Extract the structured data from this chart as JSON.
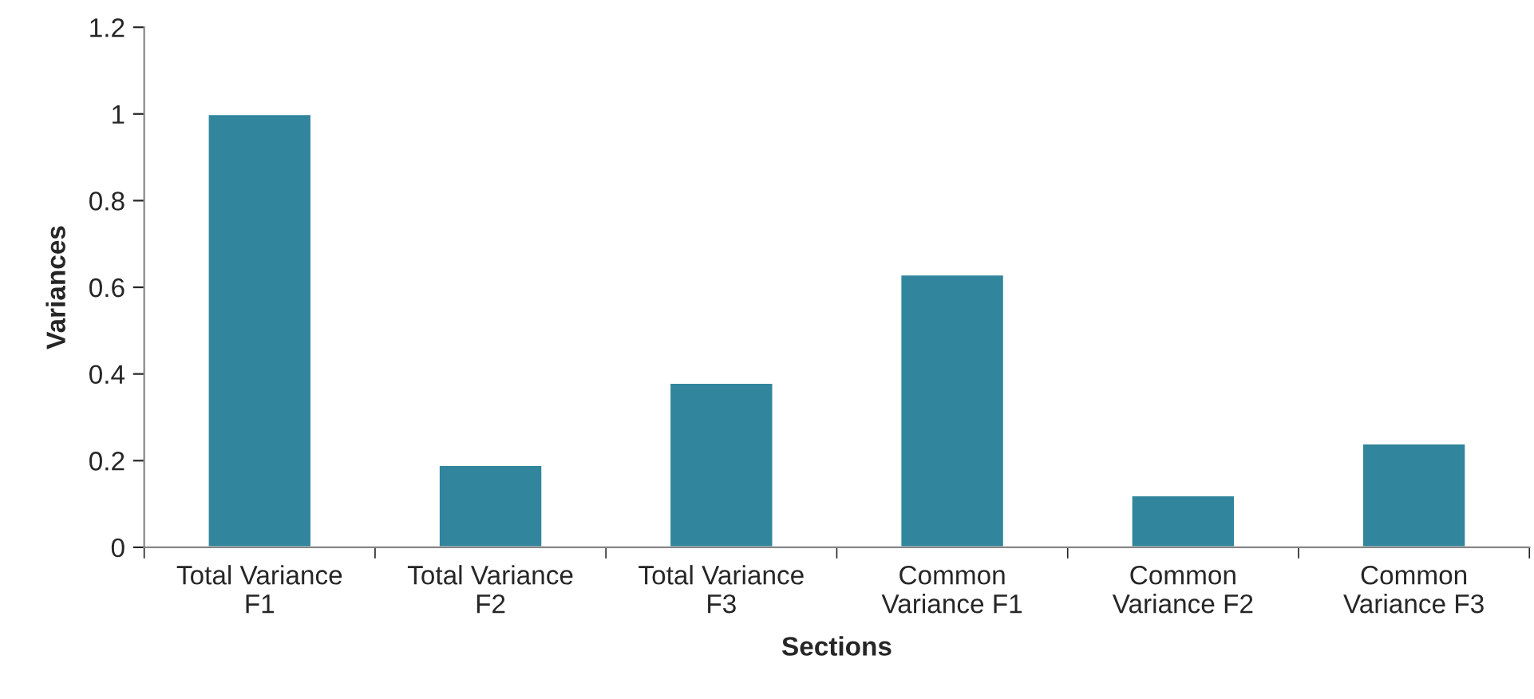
{
  "chart_data": {
    "type": "bar",
    "xlabel": "Sections",
    "ylabel": "Variances",
    "categories": [
      "Total Variance\nF1",
      "Total Variance\nF2",
      "Total Variance\nF3",
      "Common\nVariance F1",
      "Common\nVariance F2",
      "Common\nVariance F3"
    ],
    "values": [
      1.0,
      0.19,
      0.38,
      0.63,
      0.12,
      0.24
    ],
    "color": "#31859c",
    "ylim": [
      0,
      1.2
    ],
    "yticks": [
      0,
      {
        "value": 0.2,
        "label": "0.2"
      },
      {
        "value": 0.4,
        "label": "0.4"
      },
      {
        "value": 0.6,
        "label": "0.6"
      },
      {
        "value": 0.8,
        "label": "0.8"
      },
      1,
      {
        "value": 1.2,
        "label": "1.2"
      }
    ],
    "grid": false,
    "legend": false
  }
}
